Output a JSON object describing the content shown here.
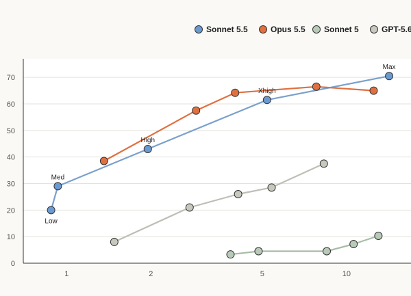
{
  "chart_data": {
    "type": "line",
    "title": "",
    "xlabel": "",
    "ylabel": "",
    "x_scale": "log",
    "xlim": [
      0.7,
      17
    ],
    "ylim": [
      0,
      77
    ],
    "x_ticks": [
      1,
      2,
      5,
      10
    ],
    "x_tick_labels": [
      "1",
      "2",
      "5",
      "10"
    ],
    "y_ticks": [
      0,
      10,
      20,
      30,
      40,
      50,
      60,
      70
    ],
    "y_tick_labels": [
      "0",
      "10",
      "20",
      "30",
      "40",
      "50",
      "60",
      "70"
    ],
    "grid": {
      "horizontal": true,
      "vertical": false
    },
    "legend_position": "top-right",
    "colors": {
      "background": "#faf9f5",
      "plot_area": "#ffffff",
      "grid": "#e2e2de",
      "axis": "#333333",
      "marker_edge": "#333333"
    },
    "series": [
      {
        "name": "Sonnet 5.5",
        "color": "#6a9ad0",
        "line_color": "#7aa0cc",
        "points": [
          {
            "x": 0.88,
            "y": 20,
            "label": "Low"
          },
          {
            "x": 0.93,
            "y": 29,
            "label": "Med"
          },
          {
            "x": 1.95,
            "y": 43,
            "label": "High"
          },
          {
            "x": 5.2,
            "y": 61.5,
            "label": "Xhigh"
          },
          {
            "x": 14.2,
            "y": 70.5,
            "label": "Max"
          }
        ]
      },
      {
        "name": "Opus 5.5",
        "color": "#e07040",
        "line_color": "#e07040",
        "points": [
          {
            "x": 1.36,
            "y": 38.5
          },
          {
            "x": 2.9,
            "y": 57.5
          },
          {
            "x": 4.0,
            "y": 64.2
          },
          {
            "x": 7.8,
            "y": 66.5
          },
          {
            "x": 12.5,
            "y": 65
          }
        ]
      },
      {
        "name": "Sonnet 5",
        "color": "#b8cab8",
        "line_color": "#a8bca8",
        "points": [
          {
            "x": 3.85,
            "y": 3.3
          },
          {
            "x": 4.85,
            "y": 4.5
          },
          {
            "x": 8.5,
            "y": 4.5
          },
          {
            "x": 10.6,
            "y": 7.2
          },
          {
            "x": 13.0,
            "y": 10.3
          }
        ]
      },
      {
        "name": "GPT-5.6",
        "color": "#c8c8be",
        "line_color": "#bebeb6",
        "points": [
          {
            "x": 1.48,
            "y": 8
          },
          {
            "x": 2.75,
            "y": 21
          },
          {
            "x": 4.1,
            "y": 26
          },
          {
            "x": 5.4,
            "y": 28.5
          },
          {
            "x": 8.3,
            "y": 37.5
          }
        ]
      }
    ]
  }
}
